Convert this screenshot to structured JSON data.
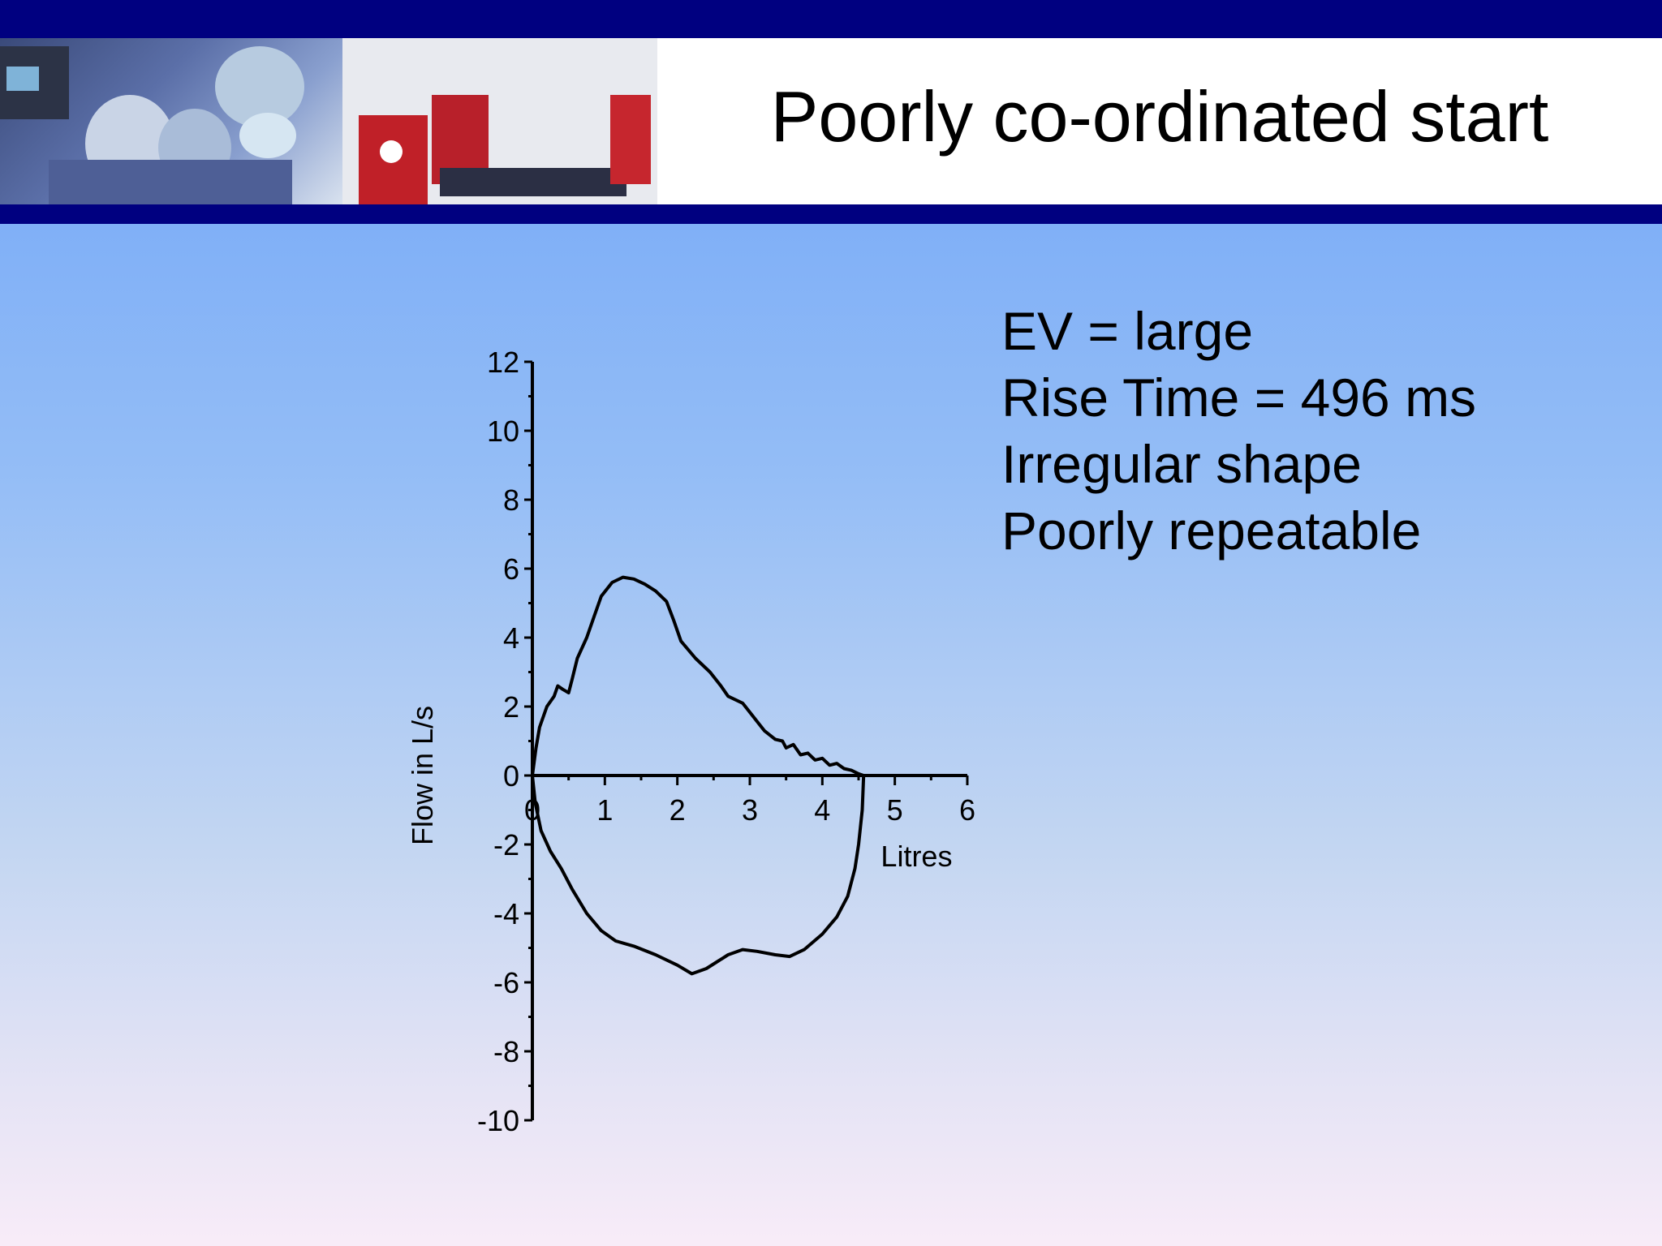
{
  "slide": {
    "title": "Poorly co-ordinated start",
    "notes": [
      "EV = large",
      "Rise Time = 496 ms",
      "Irregular shape",
      "Poorly repeatable"
    ]
  },
  "colors": {
    "banner": "#000080",
    "curve": "#000000"
  },
  "chart_data": {
    "type": "line",
    "xlabel": "Litres",
    "ylabel": "Flow in L/s",
    "xlim": [
      0,
      6
    ],
    "ylim": [
      -10,
      12
    ],
    "x_ticks": [
      0,
      1,
      2,
      3,
      4,
      5,
      6
    ],
    "y_ticks": [
      12,
      10,
      8,
      6,
      4,
      2,
      0,
      -2,
      -4,
      -6,
      -8,
      -10
    ],
    "legend": "none",
    "grid": false,
    "series": [
      {
        "points": [
          [
            0,
            0
          ],
          [
            0.05,
            0.8
          ],
          [
            0.1,
            1.4
          ],
          [
            0.2,
            2.0
          ],
          [
            0.3,
            2.3
          ],
          [
            0.35,
            2.6
          ],
          [
            0.42,
            2.5
          ],
          [
            0.5,
            2.4
          ],
          [
            0.55,
            2.8
          ],
          [
            0.62,
            3.4
          ],
          [
            0.75,
            4.0
          ],
          [
            0.85,
            4.6
          ],
          [
            0.95,
            5.2
          ],
          [
            1.1,
            5.6
          ],
          [
            1.25,
            5.75
          ],
          [
            1.4,
            5.7
          ],
          [
            1.55,
            5.55
          ],
          [
            1.7,
            5.35
          ],
          [
            1.85,
            5.05
          ],
          [
            1.95,
            4.5
          ],
          [
            2.05,
            3.9
          ],
          [
            2.25,
            3.4
          ],
          [
            2.45,
            3.0
          ],
          [
            2.6,
            2.6
          ],
          [
            2.7,
            2.3
          ],
          [
            2.9,
            2.1
          ],
          [
            3.05,
            1.7
          ],
          [
            3.2,
            1.3
          ],
          [
            3.35,
            1.05
          ],
          [
            3.45,
            1.0
          ],
          [
            3.5,
            0.8
          ],
          [
            3.6,
            0.9
          ],
          [
            3.7,
            0.6
          ],
          [
            3.8,
            0.65
          ],
          [
            3.9,
            0.45
          ],
          [
            4.0,
            0.5
          ],
          [
            4.1,
            0.3
          ],
          [
            4.2,
            0.35
          ],
          [
            4.3,
            0.2
          ],
          [
            4.4,
            0.15
          ],
          [
            4.5,
            0.05
          ],
          [
            4.57,
            0
          ],
          [
            4.55,
            -1.0
          ],
          [
            4.5,
            -2.0
          ],
          [
            4.45,
            -2.7
          ],
          [
            4.35,
            -3.5
          ],
          [
            4.2,
            -4.1
          ],
          [
            4.0,
            -4.6
          ],
          [
            3.75,
            -5.05
          ],
          [
            3.55,
            -5.25
          ],
          [
            3.35,
            -5.2
          ],
          [
            3.1,
            -5.1
          ],
          [
            2.9,
            -5.05
          ],
          [
            2.7,
            -5.2
          ],
          [
            2.55,
            -5.4
          ],
          [
            2.4,
            -5.6
          ],
          [
            2.2,
            -5.75
          ],
          [
            2.0,
            -5.5
          ],
          [
            1.7,
            -5.2
          ],
          [
            1.4,
            -4.95
          ],
          [
            1.15,
            -4.8
          ],
          [
            0.95,
            -4.5
          ],
          [
            0.75,
            -4.0
          ],
          [
            0.55,
            -3.3
          ],
          [
            0.4,
            -2.7
          ],
          [
            0.25,
            -2.2
          ],
          [
            0.12,
            -1.6
          ],
          [
            0.04,
            -0.8
          ],
          [
            0,
            0
          ]
        ]
      }
    ]
  }
}
